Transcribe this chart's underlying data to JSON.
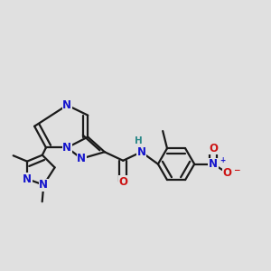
{
  "bg_color": "#e0e0e0",
  "bond_color": "#1a1a1a",
  "lw": 1.6,
  "dbl_off": 0.012,
  "fs": 8.5,
  "colors": {
    "N": "#1414cc",
    "O": "#cc1414",
    "H": "#2a8888",
    "C": "#1a1a1a"
  },
  "xlim": [
    0.05,
    0.98
  ],
  "ylim": [
    0.3,
    0.85
  ]
}
